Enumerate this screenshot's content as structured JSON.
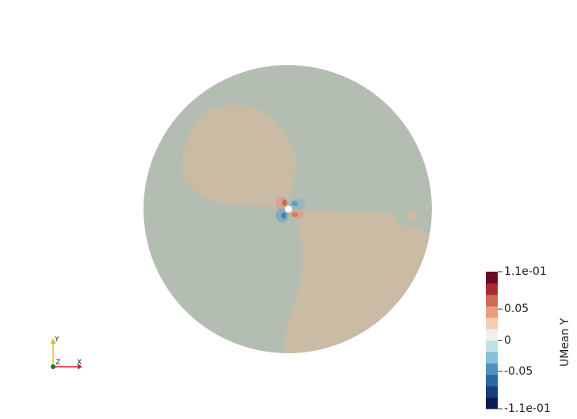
{
  "colorbar": {
    "title": "UMean Y",
    "ticks": [
      {
        "label": "1.1e-01",
        "value": 0.11
      },
      {
        "label": "0.05",
        "value": 0.05
      },
      {
        "label": "0",
        "value": 0
      },
      {
        "label": "-0.05",
        "value": -0.05
      },
      {
        "label": "-1.1e-01",
        "value": -0.11
      }
    ],
    "range": [
      -0.11,
      0.11
    ],
    "colors": [
      "#0b1d4d",
      "#16407a",
      "#2a6aa0",
      "#4d93bd",
      "#86bfd6",
      "#c2e0e8",
      "#f2f0ec",
      "#f5cdb0",
      "#e89e7e",
      "#cf6a55",
      "#a82c33",
      "#6b0a24"
    ]
  },
  "field": {
    "background_color": "#b4bdb2",
    "positive_region_color": "#c9bba4"
  },
  "axes_triad": {
    "x_label": "X",
    "y_label": "Y",
    "z_label": "Z",
    "x_color": "#cc2222",
    "y_color": "#d8c21a",
    "z_color": "#1a7a2a"
  }
}
